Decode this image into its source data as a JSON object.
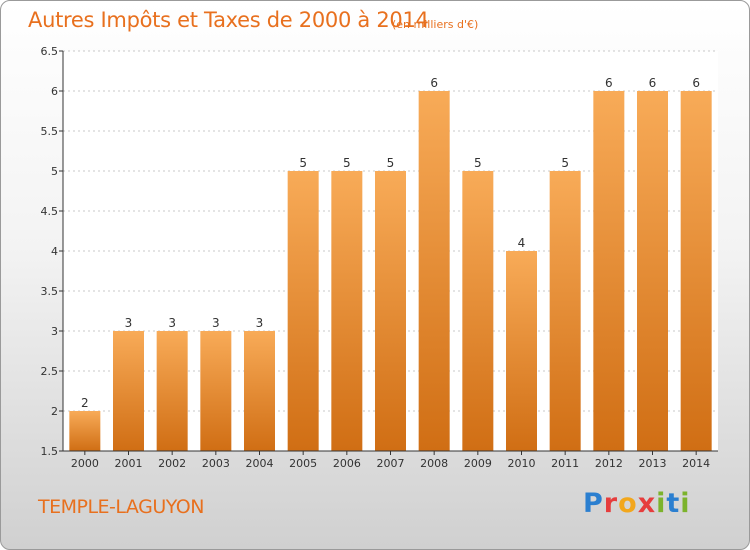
{
  "title": "Autres Impôts et Taxes de 2000 à 2014",
  "unit_label": "(en milliers d'€)",
  "commune": "TEMPLE-LAGUYON",
  "brand": {
    "letters": [
      {
        "ch": "P",
        "color": "#2b7fd0"
      },
      {
        "ch": "r",
        "color": "#e63d3d"
      },
      {
        "ch": "o",
        "color": "#f2a71c"
      },
      {
        "ch": "x",
        "color": "#e63d3d"
      },
      {
        "ch": "i",
        "color": "#7cb32c"
      },
      {
        "ch": "t",
        "color": "#2b7fd0"
      },
      {
        "ch": "i",
        "color": "#7cb32c"
      }
    ]
  },
  "colors": {
    "bar_top": "#f8ab58",
    "bar_bottom": "#d06e14",
    "accent": "#e8701e",
    "grid": "#c8c8c8",
    "axis": "#333333"
  },
  "chart_data": {
    "type": "bar",
    "categories": [
      "2000",
      "2001",
      "2002",
      "2003",
      "2004",
      "2005",
      "2006",
      "2007",
      "2008",
      "2009",
      "2010",
      "2011",
      "2012",
      "2013",
      "2014"
    ],
    "values": [
      2,
      3,
      3,
      3,
      3,
      5,
      5,
      5,
      6,
      5,
      4,
      5,
      6,
      6,
      6
    ],
    "data_labels": [
      "2",
      "3",
      "3",
      "3",
      "3",
      "5",
      "5",
      "5",
      "6",
      "5",
      "4",
      "5",
      "6",
      "6",
      "6"
    ],
    "title": "Autres Impôts et Taxes de 2000 à 2014",
    "xlabel": "",
    "ylabel": "",
    "ylim": [
      1.5,
      6.5
    ],
    "yticks": [
      "1.5",
      "2",
      "2.5",
      "3",
      "3.5",
      "4",
      "4.5",
      "5",
      "5.5",
      "6",
      "6.5"
    ],
    "grid": true
  }
}
